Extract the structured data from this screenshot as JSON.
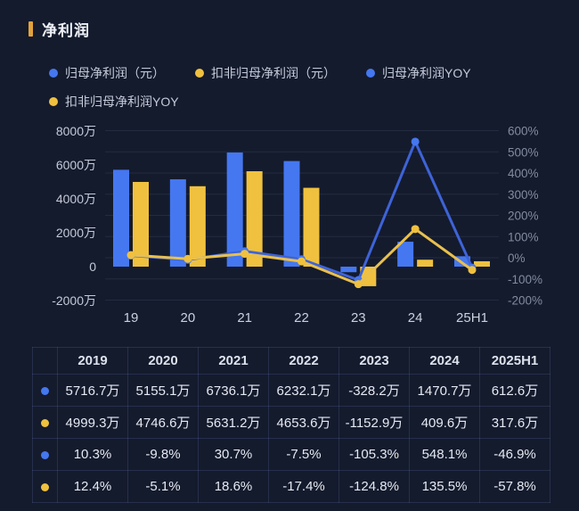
{
  "page": {
    "background": "#141b2d"
  },
  "header": {
    "title": "净利润",
    "accent_color": "#e2a33c"
  },
  "colors": {
    "bar_blue": "#4577f0",
    "bar_yellow": "#f0c13e",
    "line_blue": "#3e63d8",
    "line_yellow": "#e9c04e",
    "axis_left_text": "#c4cad8",
    "axis_right_text": "#828ba0",
    "x_label_text": "#ccd1de",
    "grid": "rgba(150,165,210,0.12)"
  },
  "legend": {
    "rows": [
      [
        {
          "label": "归母净利润（元）",
          "color": "#4577f0"
        },
        {
          "label": "扣非归母净利润（元）",
          "color": "#f0c13e"
        },
        {
          "label": "归母净利润YOY",
          "color": "#4577f0"
        }
      ],
      [
        {
          "label": "扣非归母净利润YOY",
          "color": "#f0c13e"
        }
      ]
    ]
  },
  "chart_data": {
    "type": "combo-bar-line",
    "categories": [
      "19",
      "20",
      "21",
      "22",
      "23",
      "24",
      "25H1"
    ],
    "series": [
      {
        "name": "归母净利润（元）",
        "kind": "bar",
        "unit": "万",
        "color": "#4577f0",
        "values": [
          5716.7,
          5155.1,
          6736.1,
          6232.1,
          -328.2,
          1470.7,
          612.6
        ]
      },
      {
        "name": "扣非归母净利润（元）",
        "kind": "bar",
        "unit": "万",
        "color": "#f0c13e",
        "values": [
          4999.3,
          4746.6,
          5631.2,
          4653.6,
          -1152.9,
          409.6,
          317.6
        ]
      },
      {
        "name": "归母净利润YOY",
        "kind": "line",
        "unit": "%",
        "color": "#3e63d8",
        "dot_color": "#4577f0",
        "values": [
          10.3,
          -9.8,
          30.7,
          -7.5,
          -105.3,
          548.1,
          -46.9
        ]
      },
      {
        "name": "扣非归母净利润YOY",
        "kind": "line",
        "unit": "%",
        "color": "#e9c04e",
        "dot_color": "#f0c13e",
        "values": [
          12.4,
          -5.1,
          18.6,
          -17.4,
          -124.8,
          135.5,
          -57.8
        ]
      }
    ],
    "left_axis": {
      "title": "",
      "tick_labels": [
        "8000万",
        "6000万",
        "4000万",
        "2000万",
        "0",
        "-2000万"
      ],
      "tick_values": [
        8000,
        6000,
        4000,
        2000,
        0,
        -2000
      ],
      "range": [
        -2000,
        8000
      ]
    },
    "right_axis": {
      "title": "",
      "tick_labels": [
        "600%",
        "500%",
        "400%",
        "300%",
        "200%",
        "100%",
        "0%",
        "-100%",
        "-200%"
      ],
      "tick_values": [
        600,
        500,
        400,
        300,
        200,
        100,
        0,
        -100,
        -200
      ],
      "range": [
        -200,
        600
      ]
    },
    "grid": true,
    "legend_position": "top",
    "title": "净利润"
  },
  "table": {
    "columns": [
      "2019",
      "2020",
      "2021",
      "2022",
      "2023",
      "2024",
      "2025H1"
    ],
    "rows": [
      {
        "series": "归母净利润（元）",
        "dot_color": "#4577f0",
        "values": [
          "5716.7万",
          "5155.1万",
          "6736.1万",
          "6232.1万",
          "-328.2万",
          "1470.7万",
          "612.6万"
        ]
      },
      {
        "series": "扣非归母净利润（元）",
        "dot_color": "#f0c13e",
        "values": [
          "4999.3万",
          "4746.6万",
          "5631.2万",
          "4653.6万",
          "-1152.9万",
          "409.6万",
          "317.6万"
        ]
      },
      {
        "series": "归母净利润YOY",
        "dot_color": "#4577f0",
        "values": [
          "10.3%",
          "-9.8%",
          "30.7%",
          "-7.5%",
          "-105.3%",
          "548.1%",
          "-46.9%"
        ]
      },
      {
        "series": "扣非归母净利润YOY",
        "dot_color": "#f0c13e",
        "values": [
          "12.4%",
          "-5.1%",
          "18.6%",
          "-17.4%",
          "-124.8%",
          "135.5%",
          "-57.8%"
        ]
      }
    ]
  }
}
